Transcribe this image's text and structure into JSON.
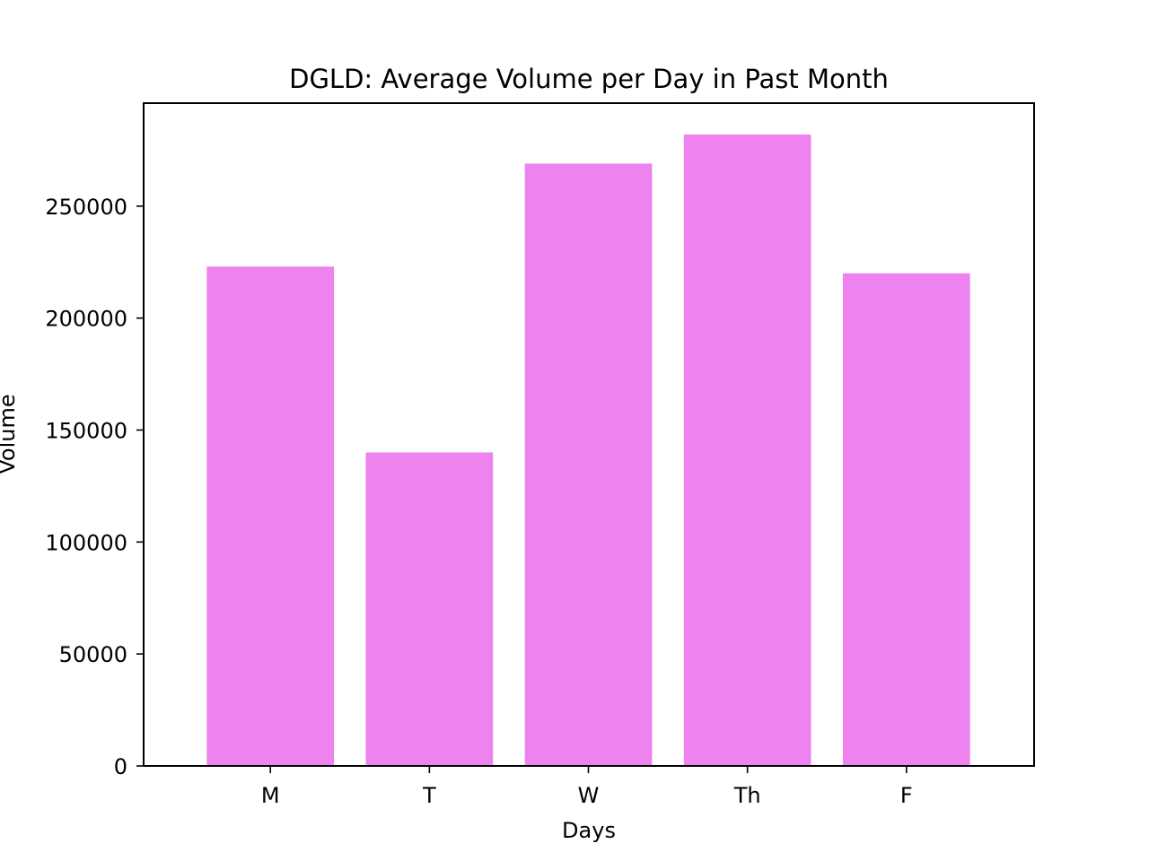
{
  "chart_data": {
    "type": "bar",
    "title": "DGLD: Average Volume per Day in Past Month",
    "xlabel": "Days",
    "ylabel": "Volume",
    "categories": [
      "M",
      "T",
      "W",
      "Th",
      "F"
    ],
    "values": [
      223000,
      140000,
      269000,
      282000,
      220000
    ],
    "ylim": [
      0,
      296000
    ],
    "yticks": [
      0,
      50000,
      100000,
      150000,
      200000,
      250000
    ],
    "grid": false,
    "legend": "none",
    "bar_color": "#ee82ee"
  }
}
